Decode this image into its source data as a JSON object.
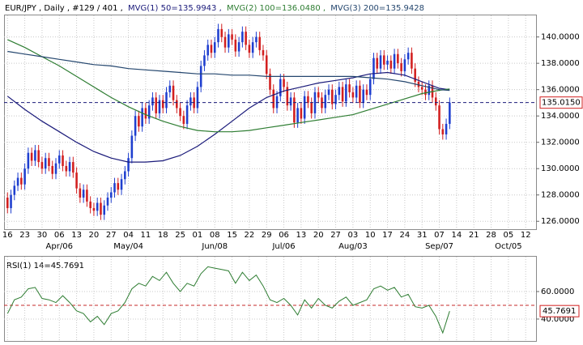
{
  "chart_data": {
    "type": "candlestick",
    "title": "EUR/JPY , Daily , #129 / 401 ,",
    "xlim": [
      -1,
      153
    ],
    "xticks": [
      {
        "value": 0,
        "label": "16"
      },
      {
        "value": 5,
        "label": "23"
      },
      {
        "value": 10,
        "label": "30"
      },
      {
        "value": 15,
        "label": "06"
      },
      {
        "value": 20,
        "label": "13"
      },
      {
        "value": 25,
        "label": "20"
      },
      {
        "value": 30,
        "label": "27"
      },
      {
        "value": 35,
        "label": "04"
      },
      {
        "value": 40,
        "label": "11"
      },
      {
        "value": 45,
        "label": "18"
      },
      {
        "value": 50,
        "label": "25"
      },
      {
        "value": 55,
        "label": "01"
      },
      {
        "value": 60,
        "label": "08"
      },
      {
        "value": 65,
        "label": "15"
      },
      {
        "value": 70,
        "label": "22"
      },
      {
        "value": 75,
        "label": "29"
      },
      {
        "value": 80,
        "label": "06"
      },
      {
        "value": 85,
        "label": "13"
      },
      {
        "value": 90,
        "label": "20"
      },
      {
        "value": 95,
        "label": "27"
      },
      {
        "value": 100,
        "label": "03"
      },
      {
        "value": 105,
        "label": "10"
      },
      {
        "value": 110,
        "label": "17"
      },
      {
        "value": 115,
        "label": "24"
      },
      {
        "value": 120,
        "label": "31"
      },
      {
        "value": 125,
        "label": "07"
      },
      {
        "value": 130,
        "label": "14"
      },
      {
        "value": 135,
        "label": "21"
      },
      {
        "value": 140,
        "label": "28"
      },
      {
        "value": 145,
        "label": "05"
      },
      {
        "value": 150,
        "label": "12"
      }
    ],
    "months": [
      {
        "value": 15,
        "label": "Apr/06"
      },
      {
        "value": 35,
        "label": "May/04"
      },
      {
        "value": 60,
        "label": "Jun/08"
      },
      {
        "value": 80,
        "label": "Jul/06"
      },
      {
        "value": 100,
        "label": "Aug/03"
      },
      {
        "value": 125,
        "label": "Sep/07"
      },
      {
        "value": 145,
        "label": "Oct/05"
      }
    ],
    "ylim": [
      125.4,
      142.5
    ],
    "yticks": [
      {
        "value": 126,
        "label": "126.0000"
      },
      {
        "value": 128,
        "label": "128.0000"
      },
      {
        "value": 130,
        "label": "130.0000"
      },
      {
        "value": 132,
        "label": "132.0000"
      },
      {
        "value": 134,
        "label": "134.0000"
      },
      {
        "value": 136,
        "label": "136.0000"
      },
      {
        "value": 138,
        "label": "138.0000"
      },
      {
        "value": 140,
        "label": "140.0000"
      }
    ],
    "grid": true,
    "up_color": "#1f3fcf",
    "down_color": "#d21f1f",
    "ohlc": [
      [
        127.8,
        128.2,
        126.6,
        127.0
      ],
      [
        127.0,
        128.4,
        126.6,
        128.0
      ],
      [
        128.0,
        129.1,
        127.6,
        128.7
      ],
      [
        128.7,
        129.7,
        128.3,
        129.3
      ],
      [
        129.3,
        129.7,
        128.4,
        128.8
      ],
      [
        128.8,
        130.4,
        128.4,
        130.0
      ],
      [
        130.0,
        131.6,
        129.6,
        131.2
      ],
      [
        131.2,
        131.6,
        130.2,
        130.6
      ],
      [
        130.6,
        131.8,
        130.2,
        131.4
      ],
      [
        131.4,
        131.8,
        130.1,
        130.5
      ],
      [
        130.5,
        130.9,
        129.6,
        130.0
      ],
      [
        130.0,
        131.2,
        129.6,
        130.8
      ],
      [
        130.8,
        131.2,
        129.8,
        130.2
      ],
      [
        130.2,
        130.6,
        129.2,
        129.6
      ],
      [
        129.6,
        130.8,
        129.2,
        130.4
      ],
      [
        130.4,
        131.4,
        130.0,
        131.0
      ],
      [
        131.0,
        131.4,
        129.8,
        130.2
      ],
      [
        130.2,
        130.6,
        129.4,
        129.8
      ],
      [
        129.8,
        130.9,
        129.4,
        130.5
      ],
      [
        130.5,
        130.9,
        129.3,
        129.7
      ],
      [
        129.7,
        130.1,
        128.1,
        128.5
      ],
      [
        128.5,
        128.9,
        127.4,
        127.8
      ],
      [
        127.8,
        128.8,
        127.4,
        128.4
      ],
      [
        128.4,
        128.8,
        127.1,
        127.5
      ],
      [
        127.5,
        127.9,
        126.6,
        127.0
      ],
      [
        127.0,
        127.4,
        126.4,
        126.8
      ],
      [
        126.8,
        127.8,
        126.4,
        127.4
      ],
      [
        127.4,
        127.8,
        126.1,
        126.5
      ],
      [
        126.5,
        127.6,
        126.1,
        127.2
      ],
      [
        127.2,
        128.2,
        126.8,
        127.8
      ],
      [
        127.8,
        128.6,
        127.4,
        128.2
      ],
      [
        128.2,
        129.3,
        127.8,
        128.9
      ],
      [
        128.9,
        129.3,
        128.0,
        128.4
      ],
      [
        128.4,
        129.6,
        128.0,
        129.2
      ],
      [
        129.2,
        130.2,
        128.8,
        129.8
      ],
      [
        129.8,
        131.2,
        129.4,
        130.8
      ],
      [
        130.8,
        132.9,
        130.4,
        132.5
      ],
      [
        132.5,
        134.4,
        132.1,
        134.0
      ],
      [
        134.0,
        134.4,
        132.8,
        133.2
      ],
      [
        133.2,
        135.0,
        132.8,
        134.6
      ],
      [
        134.6,
        135.0,
        133.4,
        133.8
      ],
      [
        133.8,
        135.2,
        133.4,
        134.8
      ],
      [
        134.8,
        135.8,
        134.4,
        135.4
      ],
      [
        135.4,
        135.8,
        133.8,
        134.2
      ],
      [
        134.2,
        135.6,
        133.8,
        135.2
      ],
      [
        135.2,
        135.6,
        134.2,
        134.6
      ],
      [
        134.6,
        136.2,
        134.2,
        135.8
      ],
      [
        135.8,
        136.7,
        135.4,
        136.3
      ],
      [
        136.3,
        136.7,
        134.8,
        135.2
      ],
      [
        135.2,
        135.6,
        134.2,
        134.6
      ],
      [
        134.6,
        135.0,
        133.6,
        134.0
      ],
      [
        134.0,
        134.4,
        133.0,
        133.4
      ],
      [
        133.4,
        135.2,
        133.0,
        134.8
      ],
      [
        134.8,
        135.8,
        134.4,
        135.4
      ],
      [
        135.4,
        135.8,
        134.2,
        134.6
      ],
      [
        134.6,
        136.6,
        134.2,
        136.2
      ],
      [
        136.2,
        138.2,
        135.8,
        137.8
      ],
      [
        137.8,
        139.0,
        137.4,
        138.6
      ],
      [
        138.6,
        139.8,
        138.2,
        139.4
      ],
      [
        139.4,
        139.8,
        138.4,
        138.8
      ],
      [
        138.8,
        140.0,
        138.4,
        139.6
      ],
      [
        139.6,
        141.0,
        139.2,
        140.6
      ],
      [
        140.6,
        141.0,
        139.6,
        140.0
      ],
      [
        140.0,
        140.4,
        138.8,
        139.2
      ],
      [
        139.2,
        140.6,
        138.8,
        140.2
      ],
      [
        140.2,
        140.6,
        139.4,
        139.8
      ],
      [
        139.8,
        140.2,
        138.5,
        138.9
      ],
      [
        138.9,
        140.0,
        138.5,
        139.6
      ],
      [
        139.6,
        140.8,
        139.2,
        140.4
      ],
      [
        140.4,
        140.8,
        139.0,
        139.4
      ],
      [
        139.4,
        139.8,
        138.4,
        138.8
      ],
      [
        138.8,
        140.0,
        138.4,
        139.6
      ],
      [
        139.6,
        140.4,
        139.2,
        140.0
      ],
      [
        140.0,
        140.4,
        138.6,
        139.0
      ],
      [
        139.0,
        139.4,
        138.2,
        138.6
      ],
      [
        138.6,
        139.0,
        136.8,
        137.2
      ],
      [
        137.2,
        137.6,
        135.6,
        136.0
      ],
      [
        136.0,
        136.4,
        134.2,
        134.6
      ],
      [
        134.6,
        135.9,
        134.2,
        135.5
      ],
      [
        135.5,
        137.2,
        135.1,
        136.8
      ],
      [
        136.8,
        137.2,
        135.8,
        136.2
      ],
      [
        136.2,
        136.6,
        134.4,
        134.8
      ],
      [
        134.8,
        135.8,
        134.4,
        135.4
      ],
      [
        135.4,
        135.8,
        133.1,
        133.5
      ],
      [
        133.5,
        135.0,
        133.1,
        134.6
      ],
      [
        134.6,
        135.0,
        133.4,
        133.8
      ],
      [
        133.8,
        135.9,
        133.4,
        135.5
      ],
      [
        135.5,
        135.9,
        134.6,
        135.0
      ],
      [
        135.0,
        135.4,
        133.8,
        134.2
      ],
      [
        134.2,
        136.2,
        133.8,
        135.8
      ],
      [
        135.8,
        136.2,
        135.0,
        135.4
      ],
      [
        135.4,
        135.8,
        134.2,
        134.6
      ],
      [
        134.6,
        136.0,
        134.2,
        135.6
      ],
      [
        135.6,
        136.4,
        135.2,
        136.0
      ],
      [
        136.0,
        136.4,
        134.5,
        134.9
      ],
      [
        134.9,
        136.0,
        134.5,
        135.6
      ],
      [
        135.6,
        136.6,
        135.2,
        136.2
      ],
      [
        136.2,
        136.6,
        134.7,
        135.1
      ],
      [
        135.1,
        136.8,
        134.7,
        136.4
      ],
      [
        136.4,
        136.8,
        135.4,
        135.8
      ],
      [
        135.8,
        136.2,
        135.0,
        135.4
      ],
      [
        135.4,
        136.7,
        135.0,
        136.3
      ],
      [
        136.3,
        136.7,
        134.6,
        135.0
      ],
      [
        135.0,
        136.4,
        134.6,
        136.0
      ],
      [
        136.0,
        136.4,
        135.2,
        135.6
      ],
      [
        135.6,
        137.2,
        135.2,
        136.8
      ],
      [
        136.8,
        138.8,
        136.4,
        138.4
      ],
      [
        138.4,
        138.8,
        137.2,
        137.6
      ],
      [
        137.6,
        139.0,
        137.2,
        138.6
      ],
      [
        138.6,
        139.0,
        137.5,
        137.9
      ],
      [
        137.9,
        138.6,
        137.5,
        138.2
      ],
      [
        138.2,
        138.6,
        137.2,
        137.6
      ],
      [
        137.6,
        139.1,
        137.2,
        138.7
      ],
      [
        138.7,
        139.1,
        137.6,
        138.0
      ],
      [
        138.0,
        138.4,
        137.0,
        137.4
      ],
      [
        137.4,
        138.7,
        137.0,
        138.3
      ],
      [
        138.3,
        139.2,
        137.9,
        138.8
      ],
      [
        138.8,
        139.2,
        137.2,
        137.6
      ],
      [
        137.6,
        138.0,
        136.2,
        136.6
      ],
      [
        136.6,
        137.0,
        135.8,
        136.2
      ],
      [
        136.2,
        136.6,
        135.6,
        136.0
      ],
      [
        136.0,
        136.4,
        135.2,
        135.6
      ],
      [
        135.6,
        136.7,
        135.2,
        136.3
      ],
      [
        136.3,
        136.7,
        135.0,
        135.4
      ],
      [
        135.4,
        135.8,
        134.4,
        134.8
      ],
      [
        134.8,
        135.2,
        132.6,
        133.0
      ],
      [
        133.0,
        133.4,
        132.2,
        132.6
      ],
      [
        132.6,
        133.8,
        132.2,
        133.4
      ],
      [
        133.4,
        135.4,
        133.0,
        135.015
      ]
    ],
    "last": {
      "value": 135.015,
      "label": "135.0150"
    },
    "ma": [
      {
        "name": "MVG(1) 50=135.9943 ,",
        "color": "#1a1a7a",
        "x": [
          0,
          5,
          10,
          15,
          20,
          25,
          30,
          35,
          40,
          45,
          50,
          55,
          60,
          65,
          70,
          75,
          80,
          85,
          90,
          95,
          100,
          105,
          110,
          115,
          120,
          125,
          128
        ],
        "values": [
          135.5,
          134.5,
          133.6,
          132.8,
          132.0,
          131.3,
          130.8,
          130.5,
          130.5,
          130.6,
          131.0,
          131.7,
          132.6,
          133.6,
          134.6,
          135.4,
          135.9,
          136.2,
          136.5,
          136.7,
          136.9,
          137.2,
          137.3,
          137.1,
          136.6,
          136.1,
          135.9943
        ]
      },
      {
        "name": "MVG(2) 100=136.0480 ,",
        "color": "#2e7d32",
        "x": [
          0,
          5,
          10,
          15,
          20,
          25,
          30,
          35,
          40,
          45,
          50,
          55,
          60,
          65,
          70,
          75,
          80,
          85,
          90,
          95,
          100,
          105,
          110,
          115,
          120,
          125,
          128
        ],
        "values": [
          139.8,
          139.2,
          138.5,
          137.8,
          137.0,
          136.2,
          135.4,
          134.7,
          134.1,
          133.6,
          133.2,
          132.9,
          132.8,
          132.8,
          132.9,
          133.1,
          133.3,
          133.5,
          133.7,
          133.9,
          134.1,
          134.5,
          134.9,
          135.3,
          135.7,
          135.95,
          136.048
        ]
      },
      {
        "name": "MVG(3) 200=135.9428",
        "color": "#24466e",
        "x": [
          0,
          5,
          10,
          15,
          20,
          25,
          30,
          35,
          40,
          45,
          50,
          55,
          60,
          65,
          70,
          75,
          80,
          85,
          90,
          95,
          100,
          105,
          110,
          115,
          120,
          125,
          128
        ],
        "values": [
          138.9,
          138.7,
          138.5,
          138.3,
          138.1,
          137.9,
          137.8,
          137.6,
          137.5,
          137.4,
          137.3,
          137.2,
          137.2,
          137.1,
          137.1,
          137.0,
          137.0,
          137.0,
          137.0,
          137.0,
          137.0,
          136.9,
          136.8,
          136.6,
          136.3,
          136.0,
          135.9428
        ]
      }
    ],
    "rsi": {
      "type": "line",
      "name": "RSI(1) 14=45.7691",
      "color": "#2e7d32",
      "ylim": [
        23.5,
        85.9
      ],
      "yticks": [
        {
          "value": 40,
          "label": "40.0000"
        },
        {
          "value": 60,
          "label": "60.0000"
        }
      ],
      "level": 50,
      "last": {
        "value": 45.7691,
        "label": "45.7691"
      },
      "x": [
        0,
        2,
        4,
        6,
        8,
        10,
        12,
        14,
        16,
        18,
        20,
        22,
        24,
        26,
        28,
        30,
        32,
        34,
        36,
        38,
        40,
        42,
        44,
        46,
        48,
        50,
        52,
        54,
        56,
        58,
        60,
        62,
        64,
        66,
        68,
        70,
        72,
        74,
        76,
        78,
        80,
        82,
        84,
        86,
        88,
        90,
        92,
        94,
        96,
        98,
        100,
        102,
        104,
        106,
        108,
        110,
        112,
        114,
        116,
        118,
        120,
        122,
        124,
        126,
        128
      ],
      "values": [
        44,
        54,
        56,
        62,
        63,
        55,
        54,
        52,
        57,
        52,
        46,
        44,
        38,
        42,
        36,
        44,
        46,
        52,
        62,
        66,
        64,
        71,
        68,
        74,
        66,
        60,
        66,
        64,
        73,
        78,
        77,
        76,
        75,
        66,
        74,
        68,
        72,
        64,
        54,
        52,
        55,
        50,
        43,
        54,
        48,
        55,
        50,
        48,
        53,
        56,
        50,
        52,
        54,
        62,
        64,
        61,
        63,
        56,
        58,
        49,
        48,
        50,
        42,
        30,
        45.7691
      ]
    }
  }
}
